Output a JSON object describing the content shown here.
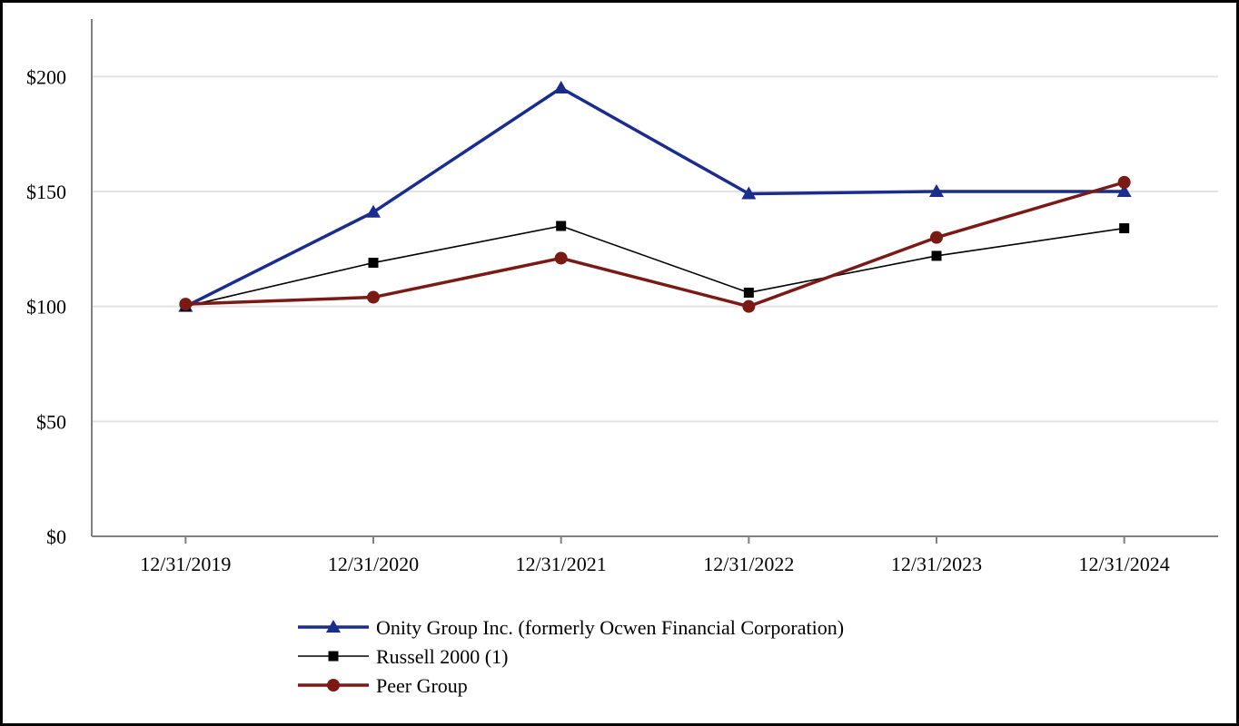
{
  "chart_data": {
    "type": "line",
    "title": "",
    "xlabel": "",
    "ylabel": "",
    "categories": [
      "12/31/2019",
      "12/31/2020",
      "12/31/2021",
      "12/31/2022",
      "12/31/2023",
      "12/31/2024"
    ],
    "ylim": [
      0,
      225
    ],
    "y_ticks": [
      0,
      50,
      100,
      150,
      200
    ],
    "y_tick_labels": [
      "$0",
      "$50",
      "$100",
      "$150",
      "$200"
    ],
    "grid": true,
    "legend_position": "bottom",
    "series": [
      {
        "name": "Onity Group Inc. (formerly Ocwen Financial Corporation)",
        "values": [
          100,
          141,
          195,
          149,
          150,
          150
        ],
        "color": "#1a2d8f",
        "marker": "triangle"
      },
      {
        "name": "Russell 2000 (1)",
        "values": [
          100,
          119,
          135,
          106,
          122,
          134
        ],
        "color": "#000000",
        "marker": "square"
      },
      {
        "name": "Peer Group",
        "values": [
          101,
          104,
          121,
          100,
          130,
          154
        ],
        "color": "#7b1a14",
        "marker": "circle"
      }
    ]
  }
}
